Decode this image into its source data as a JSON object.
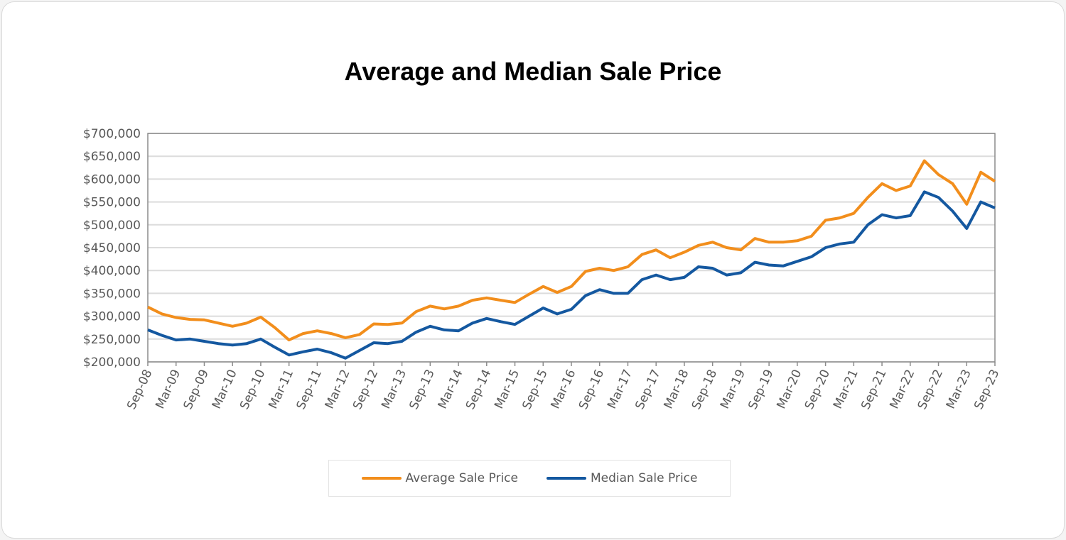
{
  "chart_data": {
    "type": "line",
    "title": "Average and Median Sale Price",
    "xlabel": "",
    "ylabel": "",
    "ylim": [
      200000,
      700000
    ],
    "yticks": [
      "$200,000",
      "$250,000",
      "$300,000",
      "$350,000",
      "$400,000",
      "$450,000",
      "$500,000",
      "$550,000",
      "$600,000",
      "$650,000",
      "$700,000"
    ],
    "xtick_labels": [
      "Sep-08",
      "Mar-09",
      "Sep-09",
      "Mar-10",
      "Sep-10",
      "Mar-11",
      "Sep-11",
      "Mar-12",
      "Sep-12",
      "Mar-13",
      "Sep-13",
      "Mar-14",
      "Sep-14",
      "Mar-15",
      "Sep-15",
      "Mar-16",
      "Sep-16",
      "Mar-17",
      "Sep-17",
      "Mar-18",
      "Sep-18",
      "Mar-19",
      "Sep-19",
      "Mar-20",
      "Sep-20",
      "Mar-21",
      "Sep-21",
      "Mar-22",
      "Sep-22",
      "Mar-23",
      "Sep-23"
    ],
    "x_note": "quarterly samples from Sep-08 to Sep-23",
    "grid": true,
    "legend_position": "bottom",
    "series": [
      {
        "name": "Average Sale Price",
        "color": "#f28e1c",
        "values": [
          320000,
          305000,
          297000,
          293000,
          292000,
          285000,
          278000,
          285000,
          298000,
          275000,
          248000,
          262000,
          268000,
          262000,
          253000,
          260000,
          283000,
          282000,
          285000,
          310000,
          322000,
          316000,
          322000,
          335000,
          340000,
          335000,
          330000,
          348000,
          365000,
          352000,
          365000,
          398000,
          405000,
          400000,
          408000,
          435000,
          445000,
          428000,
          440000,
          455000,
          462000,
          450000,
          445000,
          470000,
          462000,
          462000,
          465000,
          475000,
          510000,
          515000,
          525000,
          560000,
          590000,
          575000,
          585000,
          640000,
          610000,
          590000,
          545000,
          615000,
          595000
        ]
      },
      {
        "name": "Median Sale Price",
        "color": "#1458a0",
        "values": [
          270000,
          258000,
          248000,
          250000,
          245000,
          240000,
          237000,
          240000,
          250000,
          232000,
          215000,
          222000,
          228000,
          220000,
          208000,
          225000,
          242000,
          240000,
          245000,
          265000,
          278000,
          270000,
          268000,
          285000,
          295000,
          288000,
          282000,
          300000,
          318000,
          305000,
          315000,
          345000,
          358000,
          350000,
          350000,
          380000,
          390000,
          380000,
          385000,
          408000,
          405000,
          390000,
          395000,
          418000,
          412000,
          410000,
          420000,
          430000,
          450000,
          458000,
          462000,
          500000,
          522000,
          515000,
          520000,
          572000,
          560000,
          530000,
          492000,
          550000,
          537000
        ]
      }
    ]
  }
}
